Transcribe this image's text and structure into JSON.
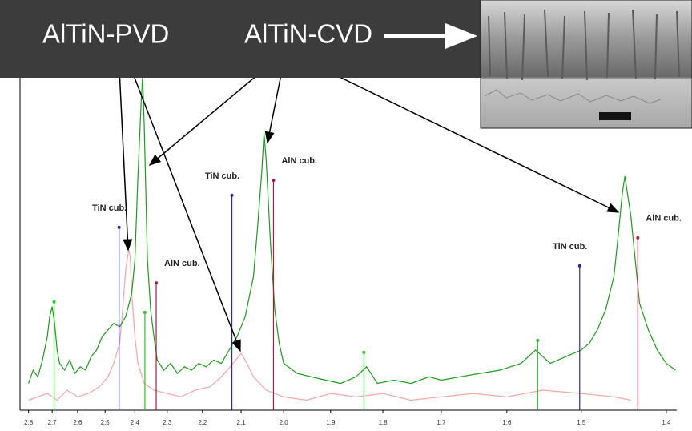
{
  "chart_data": {
    "type": "line",
    "xscale": "reciprocal",
    "xlim": [
      2.82,
      1.38
    ],
    "ylim": [
      0,
      100
    ],
    "xticks": [
      2.8,
      2.7,
      2.6,
      2.5,
      2.4,
      2.3,
      2.2,
      2.1,
      {
        "value": 2,
        "label": "2.0"
      },
      1.9,
      1.8,
      1.7,
      1.6,
      1.5,
      1.4
    ],
    "series": [
      {
        "name": "AlTiN-CVD",
        "color": "#1f9a1f",
        "x": [
          2.8,
          2.78,
          2.76,
          2.74,
          2.72,
          2.71,
          2.7,
          2.69,
          2.68,
          2.67,
          2.65,
          2.63,
          2.61,
          2.59,
          2.57,
          2.55,
          2.53,
          2.51,
          2.49,
          2.47,
          2.45,
          2.43,
          2.41,
          2.4,
          2.39,
          2.38,
          2.375,
          2.37,
          2.365,
          2.36,
          2.35,
          2.34,
          2.33,
          2.31,
          2.29,
          2.27,
          2.25,
          2.23,
          2.21,
          2.19,
          2.17,
          2.15,
          2.13,
          2.11,
          2.09,
          2.07,
          2.06,
          2.05,
          2.045,
          2.04,
          2.03,
          2.02,
          2.01,
          2.0,
          1.97,
          1.94,
          1.91,
          1.88,
          1.85,
          1.83,
          1.81,
          1.78,
          1.75,
          1.72,
          1.7,
          1.67,
          1.64,
          1.61,
          1.58,
          1.56,
          1.54,
          1.52,
          1.5,
          1.49,
          1.48,
          1.47,
          1.46,
          1.455,
          1.45,
          1.447,
          1.44,
          1.435,
          1.43,
          1.42,
          1.41,
          1.4,
          1.39
        ],
        "values": [
          8,
          12,
          10,
          15,
          22,
          28,
          31,
          26,
          18,
          14,
          12,
          15,
          11,
          13,
          12,
          16,
          18,
          22,
          24,
          26,
          25,
          28,
          35,
          45,
          70,
          92,
          100,
          85,
          65,
          45,
          30,
          22,
          15,
          12,
          14,
          11,
          13,
          12,
          14,
          13,
          15,
          14,
          18,
          22,
          28,
          40,
          55,
          72,
          83,
          75,
          50,
          30,
          20,
          14,
          11,
          10,
          9,
          8,
          10,
          13,
          8,
          9,
          8,
          10,
          9,
          10,
          11,
          12,
          14,
          18,
          14,
          16,
          18,
          20,
          24,
          30,
          40,
          52,
          65,
          70,
          58,
          45,
          32,
          24,
          18,
          14,
          12
        ]
      },
      {
        "name": "AlTiN-PVD",
        "color": "#f4a6a6",
        "x": [
          2.8,
          2.76,
          2.72,
          2.68,
          2.64,
          2.6,
          2.56,
          2.52,
          2.49,
          2.47,
          2.45,
          2.44,
          2.43,
          2.42,
          2.415,
          2.41,
          2.4,
          2.39,
          2.37,
          2.34,
          2.3,
          2.26,
          2.22,
          2.18,
          2.15,
          2.12,
          2.1,
          2.09,
          2.07,
          2.04,
          2.0,
          1.95,
          1.9,
          1.85,
          1.8,
          1.75,
          1.7,
          1.65,
          1.6,
          1.55,
          1.5,
          1.46,
          1.44
        ],
        "values": [
          3,
          4,
          5,
          3,
          6,
          4,
          5,
          7,
          10,
          14,
          20,
          30,
          42,
          48,
          46,
          35,
          22,
          14,
          8,
          6,
          5,
          4,
          6,
          7,
          10,
          14,
          17,
          15,
          10,
          6,
          4,
          3,
          5,
          4,
          5,
          3,
          4,
          5,
          4,
          6,
          5,
          4,
          3
        ]
      }
    ],
    "references": [
      {
        "label": "TiN cub.",
        "color": "#2b2ba0",
        "x": [
          2.452,
          2.123,
          1.502
        ],
        "values": [
          54.7,
          64.3,
          43.2
        ]
      },
      {
        "label": "AlN cub.",
        "color": "#a02040",
        "x": [
          2.333,
          2.023,
          1.432
        ],
        "values": [
          38.1,
          68.8,
          51.6
        ]
      },
      {
        "color": "#2fbf2f",
        "x": [
          2.692,
          2.368,
          1.835,
          1.557
        ],
        "values": [
          32.4,
          29.3,
          17.3,
          20.9
        ]
      }
    ]
  }
}
